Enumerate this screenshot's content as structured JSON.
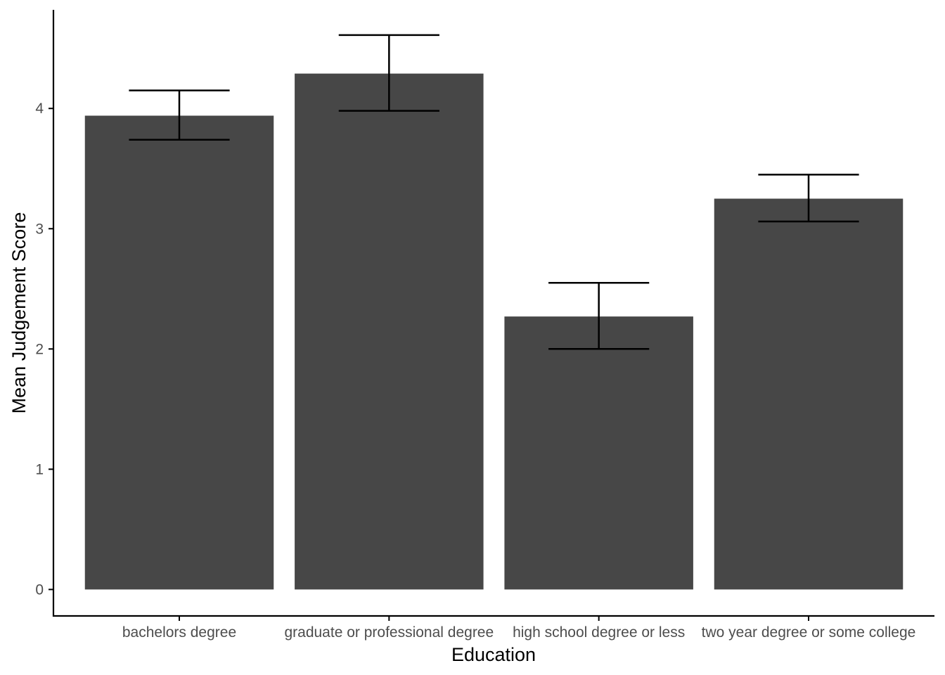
{
  "chart_data": {
    "type": "bar",
    "title": "",
    "xlabel": "Education",
    "ylabel": "Mean Judgement Score",
    "categories": [
      "bachelors degree",
      "graduate or professional degree",
      "high school degree or less",
      "two year degree or some college"
    ],
    "values": [
      3.94,
      4.29,
      2.27,
      3.25
    ],
    "error_lower": [
      3.74,
      3.98,
      2.0,
      3.06
    ],
    "error_upper": [
      4.15,
      4.61,
      2.55,
      3.45
    ],
    "yticks": [
      0,
      1,
      2,
      3,
      4
    ],
    "ylim": [
      -0.22,
      4.82
    ],
    "bar_color": "#474747",
    "errorbar_color": "#000000",
    "grid": false,
    "legend": "none"
  }
}
